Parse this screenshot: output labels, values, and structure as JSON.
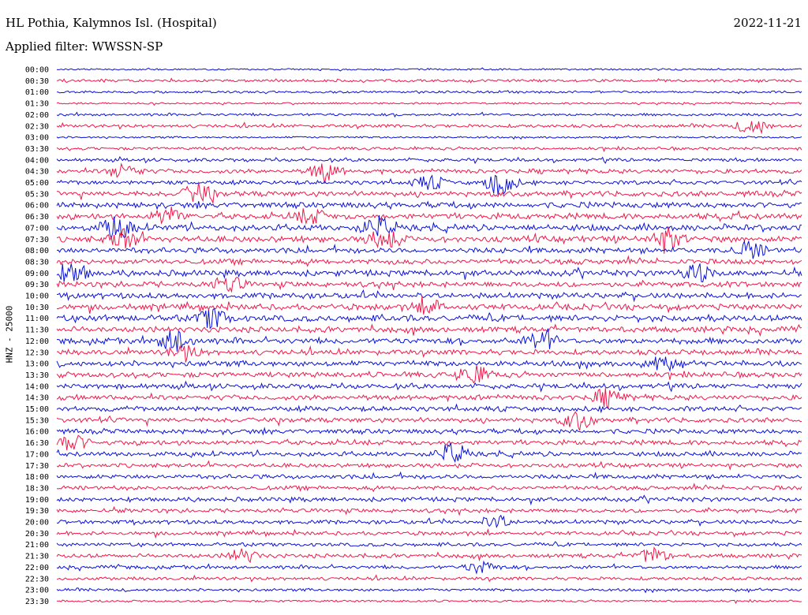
{
  "header": {
    "station": "HL Pothia, Kalymnos Isl. (Hospital)",
    "date": "2022-11-21",
    "filter": "Applied filter: WWSSN-SP"
  },
  "side_label": "HNZ - 25000",
  "colors": {
    "even_row": "#0a10d8",
    "odd_row": "#f0174a"
  },
  "chart_data": {
    "type": "helicorder",
    "channel": "HNZ",
    "scale": 25000,
    "filter": "WWSSN-SP",
    "row_labels": [
      "00:00",
      "00:30",
      "01:00",
      "01:30",
      "02:00",
      "02:30",
      "03:00",
      "03:30",
      "04:00",
      "04:30",
      "05:00",
      "05:30",
      "06:00",
      "06:30",
      "07:00",
      "07:30",
      "08:00",
      "08:30",
      "09:00",
      "09:30",
      "10:00",
      "10:30",
      "11:00",
      "11:30",
      "12:00",
      "12:30",
      "13:00",
      "13:30",
      "14:00",
      "14:30",
      "15:00",
      "15:30",
      "16:00",
      "16:30",
      "17:00",
      "17:30",
      "18:00",
      "18:30",
      "19:00",
      "19:30",
      "20:00",
      "20:30",
      "21:00",
      "21:30",
      "22:00",
      "22:30",
      "23:00",
      "23:30"
    ],
    "noise_levels": [
      0.12,
      0.3,
      0.22,
      0.14,
      0.28,
      0.4,
      0.15,
      0.35,
      0.4,
      0.6,
      0.55,
      0.8,
      0.85,
      0.9,
      0.95,
      0.9,
      0.8,
      0.75,
      0.9,
      0.8,
      0.85,
      0.9,
      0.95,
      0.85,
      0.85,
      0.75,
      0.8,
      0.8,
      0.7,
      0.75,
      0.7,
      0.7,
      0.65,
      0.7,
      0.65,
      0.55,
      0.6,
      0.55,
      0.6,
      0.55,
      0.55,
      0.5,
      0.45,
      0.55,
      0.45,
      0.4,
      0.3,
      0.2
    ],
    "events": [
      {
        "row": 5,
        "t": 0.935,
        "amp": 1.6
      },
      {
        "row": 9,
        "t": 0.09,
        "amp": 1.4
      },
      {
        "row": 9,
        "t": 0.36,
        "amp": 1.8
      },
      {
        "row": 10,
        "t": 0.595,
        "amp": 2.4
      },
      {
        "row": 10,
        "t": 0.5,
        "amp": 1.3
      },
      {
        "row": 11,
        "t": 0.19,
        "amp": 1.8
      },
      {
        "row": 13,
        "t": 0.15,
        "amp": 1.5
      },
      {
        "row": 13,
        "t": 0.34,
        "amp": 1.3
      },
      {
        "row": 14,
        "t": 0.08,
        "amp": 2.0
      },
      {
        "row": 14,
        "t": 0.43,
        "amp": 2.0
      },
      {
        "row": 15,
        "t": 0.09,
        "amp": 1.8
      },
      {
        "row": 15,
        "t": 0.44,
        "amp": 2.0
      },
      {
        "row": 15,
        "t": 0.82,
        "amp": 2.0
      },
      {
        "row": 16,
        "t": 0.93,
        "amp": 1.6
      },
      {
        "row": 18,
        "t": 0.02,
        "amp": 2.0
      },
      {
        "row": 18,
        "t": 0.86,
        "amp": 1.6
      },
      {
        "row": 19,
        "t": 0.23,
        "amp": 1.5
      },
      {
        "row": 21,
        "t": 0.5,
        "amp": 1.4
      },
      {
        "row": 22,
        "t": 0.21,
        "amp": 1.8
      },
      {
        "row": 24,
        "t": 0.16,
        "amp": 2.4
      },
      {
        "row": 24,
        "t": 0.65,
        "amp": 2.0
      },
      {
        "row": 25,
        "t": 0.17,
        "amp": 1.4
      },
      {
        "row": 26,
        "t": 0.81,
        "amp": 1.3
      },
      {
        "row": 27,
        "t": 0.56,
        "amp": 1.8
      },
      {
        "row": 29,
        "t": 0.74,
        "amp": 1.6
      },
      {
        "row": 31,
        "t": 0.7,
        "amp": 1.7
      },
      {
        "row": 33,
        "t": 0.02,
        "amp": 1.6
      },
      {
        "row": 34,
        "t": 0.53,
        "amp": 1.9
      },
      {
        "row": 40,
        "t": 0.59,
        "amp": 1.2
      },
      {
        "row": 43,
        "t": 0.25,
        "amp": 1.3
      },
      {
        "row": 43,
        "t": 0.8,
        "amp": 1.5
      },
      {
        "row": 44,
        "t": 0.57,
        "amp": 1.2
      }
    ]
  }
}
